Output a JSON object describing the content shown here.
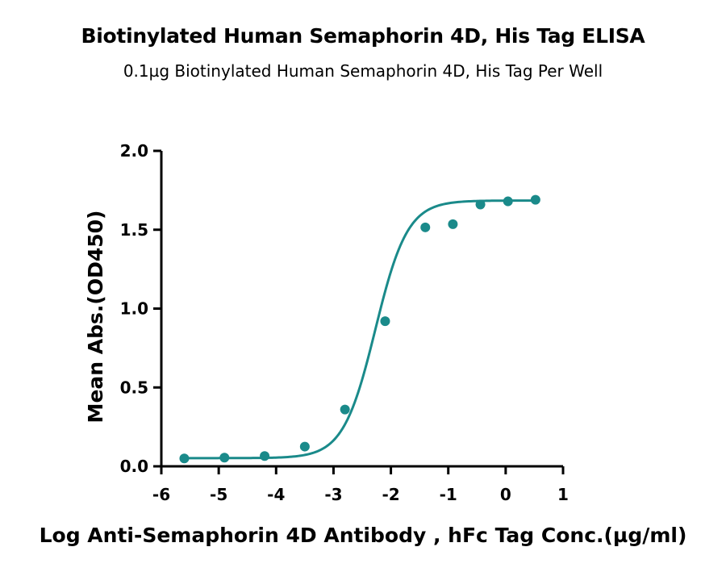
{
  "chart_data": {
    "type": "scatter",
    "title": "Biotinylated Human Semaphorin 4D, His Tag ELISA",
    "subtitle": "0.1µg Biotinylated Human Semaphorin 4D, His Tag Per Well",
    "xlabel": "Log Anti-Semaphorin 4D Antibody , hFc Tag Conc.(µg/ml)",
    "ylabel": "Mean Abs.(OD450)",
    "xlim": [
      -6,
      1
    ],
    "ylim": [
      0,
      2.0
    ],
    "x_ticks": [
      "-6",
      "-5",
      "-4",
      "-3",
      "-2",
      "-1",
      "0",
      "1"
    ],
    "y_ticks": [
      "0.0",
      "0.5",
      "1.0",
      "1.5",
      "2.0"
    ],
    "grid": false,
    "color": "#1a8a8a",
    "series": [
      {
        "x": [
          -5.6,
          -4.9,
          -4.2,
          -3.5,
          -2.8,
          -2.1,
          -1.4,
          -0.92,
          -0.44,
          0.04,
          0.52
        ],
        "y": [
          0.05,
          0.055,
          0.065,
          0.125,
          0.36,
          0.92,
          1.515,
          1.535,
          1.66,
          1.68,
          1.69
        ]
      }
    ],
    "fit_curve": {
      "model": "4PL",
      "bottom": 0.052,
      "top": 1.685,
      "logEC50": -2.27,
      "hill": 1.55
    }
  }
}
